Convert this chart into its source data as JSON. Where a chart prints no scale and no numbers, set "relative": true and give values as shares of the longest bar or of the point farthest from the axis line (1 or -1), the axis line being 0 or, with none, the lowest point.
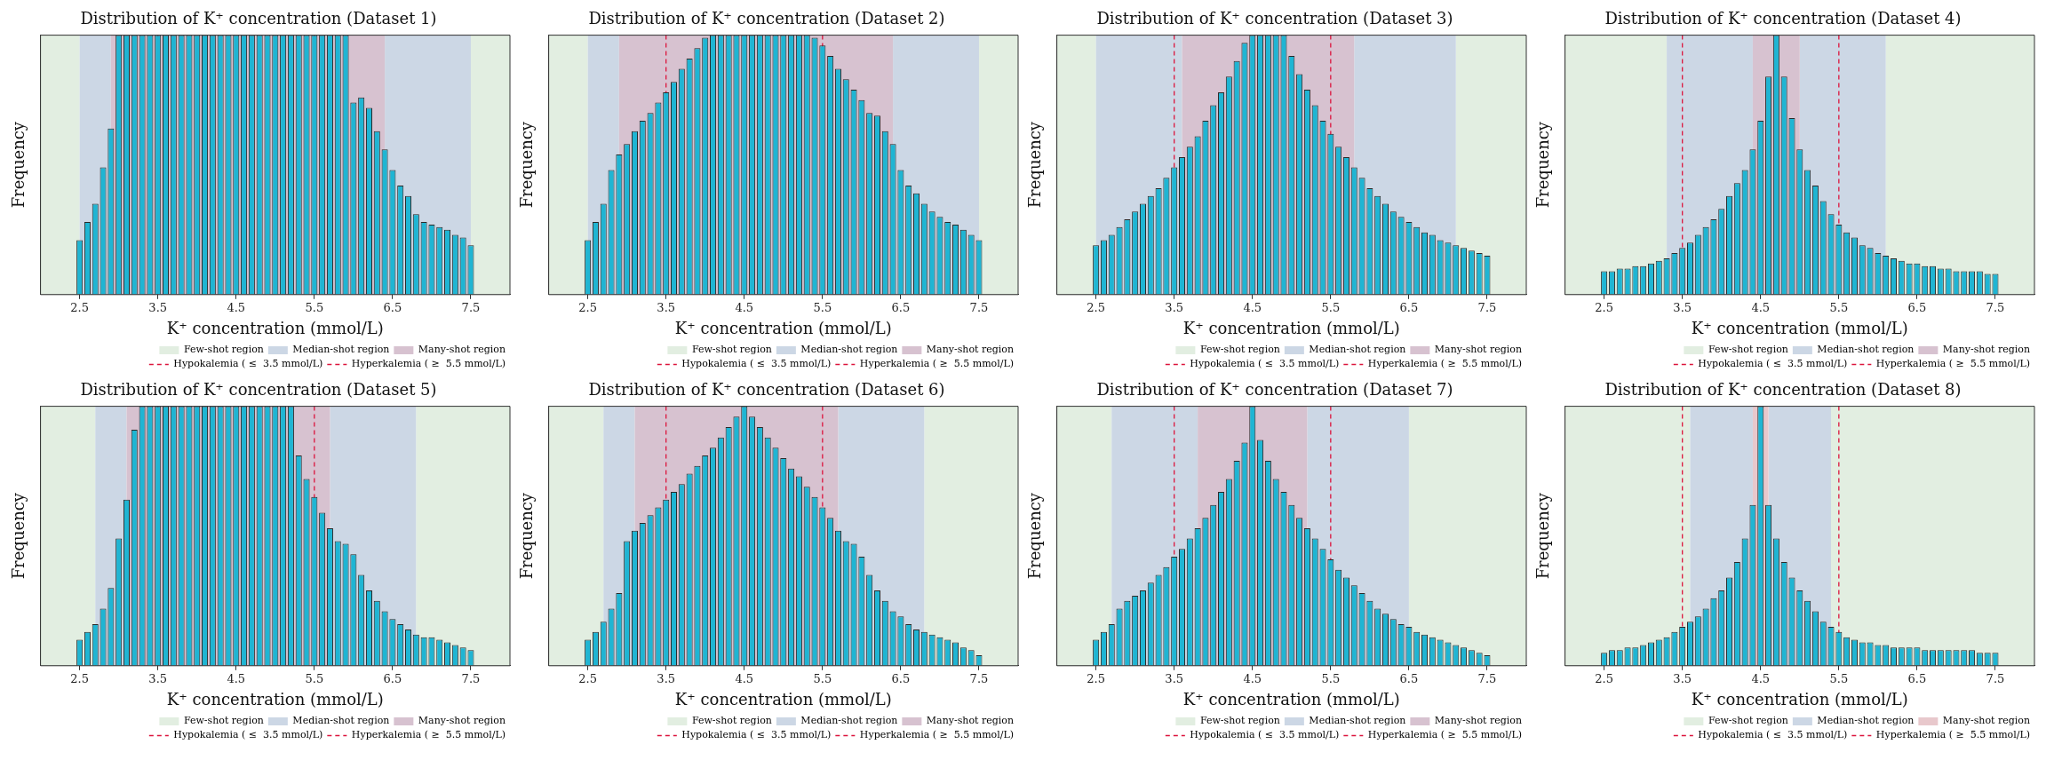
{
  "chart_data": [
    {
      "type": "bar",
      "title": "Distribution of K⁺ concentration (Dataset 1)",
      "xlabel": "K⁺ concentration (mmol/L)",
      "ylabel": "Frequency",
      "relative": true,
      "color": "#1fb5d3",
      "xlim": [
        2,
        8
      ],
      "xticks": [
        2.5,
        3.5,
        4.5,
        5.5,
        6.5,
        7.5
      ],
      "legend": "bottom right",
      "x": [
        2.5,
        2.6,
        2.7,
        2.8,
        2.9,
        3.0,
        3.1,
        3.2,
        3.3,
        3.4,
        3.5,
        3.6,
        3.7,
        3.8,
        3.9,
        4.0,
        4.1,
        4.2,
        4.3,
        4.4,
        4.5,
        4.6,
        4.7,
        4.8,
        4.9,
        5.0,
        5.1,
        5.2,
        5.3,
        5.4,
        5.5,
        5.6,
        5.7,
        5.8,
        5.9,
        6.0,
        6.1,
        6.2,
        6.3,
        6.4,
        6.5,
        6.6,
        6.7,
        6.8,
        6.9,
        7.0,
        7.1,
        7.2,
        7.3,
        7.4,
        7.5
      ],
      "values": [
        0.21,
        0.28,
        0.35,
        0.49,
        0.64,
        1,
        1,
        1,
        1,
        1,
        1,
        1,
        1,
        1,
        1,
        1,
        1,
        1,
        1,
        1,
        1,
        1,
        1,
        1,
        1,
        1,
        1,
        1,
        1,
        1,
        1,
        1,
        1,
        1,
        1,
        0.74,
        0.76,
        0.72,
        0.63,
        0.56,
        0.48,
        0.42,
        0.38,
        0.31,
        0.28,
        0.27,
        0.26,
        0.25,
        0.23,
        0.22,
        0.19
      ],
      "bands": [
        {
          "axis": "x",
          "from": 2,
          "to": 2.5,
          "label": "Few-shot region",
          "color": "#e2eee1"
        },
        {
          "axis": "x",
          "from": 7.5,
          "to": 8,
          "color": "#e2eee1"
        },
        {
          "axis": "x",
          "from": 2.5,
          "to": 2.9,
          "label": "Median-shot region",
          "color": "#ccd7e5"
        },
        {
          "axis": "x",
          "from": 6.4,
          "to": 7.5,
          "color": "#ccd7e5"
        },
        {
          "axis": "x",
          "from": 2.9,
          "to": 6.4,
          "label": "Many-shot region",
          "color": "#d7c2d0"
        }
      ],
      "ref_lines": [
        {
          "axis": "x",
          "value": 3.5,
          "label": "Hypokalemia ( ≤  3.5 mmol/L)",
          "color": "#dc143c",
          "line_style": "dashed"
        },
        {
          "axis": "x",
          "value": 5.5,
          "label": "Hyperkalemia ( ≥  5.5 mmol/L)",
          "color": "#dc143c",
          "line_style": "dashed"
        }
      ]
    },
    {
      "type": "bar",
      "title": "Distribution of K⁺ concentration (Dataset 2)",
      "xlabel": "K⁺ concentration (mmol/L)",
      "ylabel": "Frequency",
      "relative": true,
      "color": "#1fb5d3",
      "xlim": [
        2,
        8
      ],
      "xticks": [
        2.5,
        3.5,
        4.5,
        5.5,
        6.5,
        7.5
      ],
      "legend": "bottom right",
      "x": [
        2.5,
        2.6,
        2.7,
        2.8,
        2.9,
        3.0,
        3.1,
        3.2,
        3.3,
        3.4,
        3.5,
        3.6,
        3.7,
        3.8,
        3.9,
        4.0,
        4.1,
        4.2,
        4.3,
        4.4,
        4.5,
        4.6,
        4.7,
        4.8,
        4.9,
        5.0,
        5.1,
        5.2,
        5.3,
        5.4,
        5.5,
        5.6,
        5.7,
        5.8,
        5.9,
        6.0,
        6.1,
        6.2,
        6.3,
        6.4,
        6.5,
        6.6,
        6.7,
        6.8,
        6.9,
        7.0,
        7.1,
        7.2,
        7.3,
        7.4,
        7.5
      ],
      "values": [
        0.21,
        0.28,
        0.35,
        0.48,
        0.54,
        0.58,
        0.63,
        0.67,
        0.7,
        0.74,
        0.78,
        0.82,
        0.87,
        0.91,
        0.95,
        0.99,
        1,
        1,
        1,
        1,
        1,
        1,
        1,
        1,
        1,
        1,
        1,
        1,
        1,
        0.99,
        0.96,
        0.92,
        0.87,
        0.83,
        0.79,
        0.75,
        0.7,
        0.69,
        0.63,
        0.58,
        0.48,
        0.42,
        0.39,
        0.35,
        0.32,
        0.3,
        0.28,
        0.27,
        0.25,
        0.23,
        0.21
      ],
      "bands": [
        {
          "axis": "x",
          "from": 2,
          "to": 2.5,
          "label": "Few-shot region",
          "color": "#e2eee1"
        },
        {
          "axis": "x",
          "from": 7.5,
          "to": 8,
          "color": "#e2eee1"
        },
        {
          "axis": "x",
          "from": 2.5,
          "to": 2.9,
          "label": "Median-shot region",
          "color": "#ccd7e5"
        },
        {
          "axis": "x",
          "from": 6.4,
          "to": 7.5,
          "color": "#ccd7e5"
        },
        {
          "axis": "x",
          "from": 2.9,
          "to": 6.4,
          "label": "Many-shot region",
          "color": "#d7c2d0"
        }
      ],
      "ref_lines": [
        {
          "axis": "x",
          "value": 3.5,
          "label": "Hypokalemia ( ≤  3.5 mmol/L)",
          "color": "#dc143c",
          "line_style": "dashed"
        },
        {
          "axis": "x",
          "value": 5.5,
          "label": "Hyperkalemia ( ≥  5.5 mmol/L)",
          "color": "#dc143c",
          "line_style": "dashed"
        }
      ]
    },
    {
      "type": "bar",
      "title": "Distribution of K⁺ concentration (Dataset 3)",
      "xlabel": "K⁺ concentration (mmol/L)",
      "ylabel": "Frequency",
      "relative": true,
      "color": "#1fb5d3",
      "xlim": [
        2,
        8
      ],
      "xticks": [
        2.5,
        3.5,
        4.5,
        5.5,
        6.5,
        7.5
      ],
      "legend": "bottom right",
      "x": [
        2.5,
        2.6,
        2.7,
        2.8,
        2.9,
        3.0,
        3.1,
        3.2,
        3.3,
        3.4,
        3.5,
        3.6,
        3.7,
        3.8,
        3.9,
        4.0,
        4.1,
        4.2,
        4.3,
        4.4,
        4.5,
        4.6,
        4.7,
        4.8,
        4.9,
        5.0,
        5.1,
        5.2,
        5.3,
        5.4,
        5.5,
        5.6,
        5.7,
        5.8,
        5.9,
        6.0,
        6.1,
        6.2,
        6.3,
        6.4,
        6.5,
        6.6,
        6.7,
        6.8,
        6.9,
        7.0,
        7.1,
        7.2,
        7.3,
        7.4,
        7.5
      ],
      "values": [
        0.19,
        0.21,
        0.23,
        0.26,
        0.29,
        0.32,
        0.35,
        0.38,
        0.41,
        0.45,
        0.49,
        0.53,
        0.57,
        0.61,
        0.67,
        0.73,
        0.78,
        0.84,
        0.9,
        0.97,
        1,
        1,
        1,
        1,
        1,
        0.92,
        0.85,
        0.79,
        0.73,
        0.67,
        0.62,
        0.57,
        0.53,
        0.49,
        0.45,
        0.41,
        0.38,
        0.35,
        0.32,
        0.3,
        0.28,
        0.26,
        0.24,
        0.23,
        0.21,
        0.2,
        0.19,
        0.18,
        0.17,
        0.16,
        0.15
      ],
      "bands": [
        {
          "axis": "x",
          "from": 2,
          "to": 2.5,
          "label": "Few-shot region",
          "color": "#e2eee1"
        },
        {
          "axis": "x",
          "from": 7.1,
          "to": 8,
          "color": "#e2eee1"
        },
        {
          "axis": "x",
          "from": 2.5,
          "to": 3.6,
          "label": "Median-shot region",
          "color": "#ccd7e5"
        },
        {
          "axis": "x",
          "from": 5.8,
          "to": 7.1,
          "color": "#ccd7e5"
        },
        {
          "axis": "x",
          "from": 3.6,
          "to": 5.8,
          "label": "Many-shot region",
          "color": "#d7c2d0"
        }
      ],
      "ref_lines": [
        {
          "axis": "x",
          "value": 3.5,
          "label": "Hypokalemia ( ≤  3.5 mmol/L)",
          "color": "#dc143c",
          "line_style": "dashed"
        },
        {
          "axis": "x",
          "value": 5.5,
          "label": "Hyperkalemia ( ≥  5.5 mmol/L)",
          "color": "#dc143c",
          "line_style": "dashed"
        }
      ]
    },
    {
      "type": "bar",
      "title": "Distribution of K⁺ concentration (Dataset 4)",
      "xlabel": "K⁺ concentration (mmol/L)",
      "ylabel": "Frequency",
      "relative": true,
      "color": "#1fb5d3",
      "xlim": [
        2,
        8
      ],
      "xticks": [
        2.5,
        3.5,
        4.5,
        5.5,
        6.5,
        7.5
      ],
      "legend": "bottom right",
      "x": [
        2.5,
        2.6,
        2.7,
        2.8,
        2.9,
        3.0,
        3.1,
        3.2,
        3.3,
        3.4,
        3.5,
        3.6,
        3.7,
        3.8,
        3.9,
        4.0,
        4.1,
        4.2,
        4.3,
        4.4,
        4.5,
        4.6,
        4.7,
        4.8,
        4.9,
        5.0,
        5.1,
        5.2,
        5.3,
        5.4,
        5.5,
        5.6,
        5.7,
        5.8,
        5.9,
        6.0,
        6.1,
        6.2,
        6.3,
        6.4,
        6.5,
        6.6,
        6.7,
        6.8,
        6.9,
        7.0,
        7.1,
        7.2,
        7.3,
        7.4,
        7.5
      ],
      "values": [
        0.09,
        0.09,
        0.1,
        0.1,
        0.11,
        0.11,
        0.12,
        0.13,
        0.14,
        0.16,
        0.18,
        0.2,
        0.23,
        0.26,
        0.29,
        0.33,
        0.38,
        0.43,
        0.48,
        0.56,
        0.67,
        0.84,
        1,
        0.84,
        0.68,
        0.56,
        0.48,
        0.42,
        0.36,
        0.31,
        0.27,
        0.24,
        0.22,
        0.19,
        0.18,
        0.16,
        0.15,
        0.14,
        0.13,
        0.12,
        0.12,
        0.11,
        0.11,
        0.1,
        0.1,
        0.09,
        0.09,
        0.09,
        0.09,
        0.08,
        0.08
      ],
      "bands": [
        {
          "axis": "x",
          "from": 2,
          "to": 3.3,
          "label": "Few-shot region",
          "color": "#e2eee1"
        },
        {
          "axis": "x",
          "from": 6.1,
          "to": 8,
          "color": "#e2eee1"
        },
        {
          "axis": "x",
          "from": 3.3,
          "to": 4.4,
          "label": "Median-shot region",
          "color": "#ccd7e5"
        },
        {
          "axis": "x",
          "from": 5,
          "to": 6.1,
          "color": "#ccd7e5"
        },
        {
          "axis": "x",
          "from": 4.4,
          "to": 5,
          "label": "Many-shot region",
          "color": "#d7c2d0"
        }
      ],
      "ref_lines": [
        {
          "axis": "x",
          "value": 3.5,
          "label": "Hypokalemia ( ≤  3.5 mmol/L)",
          "color": "#dc143c",
          "line_style": "dashed"
        },
        {
          "axis": "x",
          "value": 5.5,
          "label": "Hyperkalemia ( ≥  5.5 mmol/L)",
          "color": "#dc143c",
          "line_style": "dashed"
        }
      ]
    },
    {
      "type": "bar",
      "title": "Distribution of K⁺ concentration (Dataset 5)",
      "xlabel": "K⁺ concentration (mmol/L)",
      "ylabel": "Frequency",
      "relative": true,
      "color": "#1fb5d3",
      "xlim": [
        2,
        8
      ],
      "xticks": [
        2.5,
        3.5,
        4.5,
        5.5,
        6.5,
        7.5
      ],
      "legend": "bottom right",
      "x": [
        2.5,
        2.6,
        2.7,
        2.8,
        2.9,
        3.0,
        3.1,
        3.2,
        3.3,
        3.4,
        3.5,
        3.6,
        3.7,
        3.8,
        3.9,
        4.0,
        4.1,
        4.2,
        4.3,
        4.4,
        4.5,
        4.6,
        4.7,
        4.8,
        4.9,
        5.0,
        5.1,
        5.2,
        5.3,
        5.4,
        5.5,
        5.6,
        5.7,
        5.8,
        5.9,
        6.0,
        6.1,
        6.2,
        6.3,
        6.4,
        6.5,
        6.6,
        6.7,
        6.8,
        6.9,
        7.0,
        7.1,
        7.2,
        7.3,
        7.4,
        7.5
      ],
      "values": [
        0.1,
        0.13,
        0.16,
        0.22,
        0.3,
        0.49,
        0.64,
        0.91,
        1,
        1,
        1,
        1,
        1,
        1,
        1,
        1,
        1,
        1,
        1,
        1,
        1,
        1,
        1,
        1,
        1,
        1,
        1,
        1,
        0.81,
        0.72,
        0.65,
        0.59,
        0.53,
        0.48,
        0.47,
        0.43,
        0.35,
        0.29,
        0.25,
        0.21,
        0.18,
        0.16,
        0.14,
        0.12,
        0.11,
        0.11,
        0.1,
        0.09,
        0.08,
        0.07,
        0.06
      ],
      "bands": [
        {
          "axis": "x",
          "from": 2,
          "to": 2.7,
          "label": "Few-shot region",
          "color": "#e2eee1"
        },
        {
          "axis": "x",
          "from": 6.8,
          "to": 8,
          "color": "#e2eee1"
        },
        {
          "axis": "x",
          "from": 2.7,
          "to": 3.1,
          "label": "Median-shot region",
          "color": "#ccd7e5"
        },
        {
          "axis": "x",
          "from": 5.7,
          "to": 6.8,
          "color": "#ccd7e5"
        },
        {
          "axis": "x",
          "from": 3.1,
          "to": 5.7,
          "label": "Many-shot region",
          "color": "#d7c2d0"
        }
      ],
      "ref_lines": [
        {
          "axis": "x",
          "value": 3.5,
          "label": "Hypokalemia ( ≤  3.5 mmol/L)",
          "color": "#dc143c",
          "line_style": "dashed"
        },
        {
          "axis": "x",
          "value": 5.5,
          "label": "Hyperkalemia ( ≥  5.5 mmol/L)",
          "color": "#dc143c",
          "line_style": "dashed"
        }
      ]
    },
    {
      "type": "bar",
      "title": "Distribution of K⁺ concentration (Dataset 6)",
      "xlabel": "K⁺ concentration (mmol/L)",
      "ylabel": "Frequency",
      "relative": true,
      "color": "#1fb5d3",
      "xlim": [
        2,
        8
      ],
      "xticks": [
        2.5,
        3.5,
        4.5,
        5.5,
        6.5,
        7.5
      ],
      "legend": "bottom right",
      "x": [
        2.5,
        2.6,
        2.7,
        2.8,
        2.9,
        3.0,
        3.1,
        3.2,
        3.3,
        3.4,
        3.5,
        3.6,
        3.7,
        3.8,
        3.9,
        4.0,
        4.1,
        4.2,
        4.3,
        4.4,
        4.5,
        4.6,
        4.7,
        4.8,
        4.9,
        5.0,
        5.1,
        5.2,
        5.3,
        5.4,
        5.5,
        5.6,
        5.7,
        5.8,
        5.9,
        6.0,
        6.1,
        6.2,
        6.3,
        6.4,
        6.5,
        6.6,
        6.7,
        6.8,
        6.9,
        7.0,
        7.1,
        7.2,
        7.3,
        7.4,
        7.5
      ],
      "values": [
        0.1,
        0.13,
        0.17,
        0.22,
        0.28,
        0.48,
        0.52,
        0.55,
        0.58,
        0.61,
        0.64,
        0.67,
        0.7,
        0.74,
        0.77,
        0.81,
        0.84,
        0.88,
        0.92,
        0.96,
        1,
        0.96,
        0.92,
        0.88,
        0.84,
        0.8,
        0.76,
        0.73,
        0.69,
        0.65,
        0.61,
        0.57,
        0.52,
        0.48,
        0.47,
        0.42,
        0.35,
        0.29,
        0.25,
        0.21,
        0.19,
        0.16,
        0.14,
        0.13,
        0.12,
        0.11,
        0.1,
        0.09,
        0.07,
        0.06,
        0.04
      ],
      "bands": [
        {
          "axis": "x",
          "from": 2,
          "to": 2.7,
          "label": "Few-shot region",
          "color": "#e2eee1"
        },
        {
          "axis": "x",
          "from": 6.8,
          "to": 8,
          "color": "#e2eee1"
        },
        {
          "axis": "x",
          "from": 2.7,
          "to": 3.1,
          "label": "Median-shot region",
          "color": "#ccd7e5"
        },
        {
          "axis": "x",
          "from": 5.7,
          "to": 6.8,
          "color": "#ccd7e5"
        },
        {
          "axis": "x",
          "from": 3.1,
          "to": 5.7,
          "label": "Many-shot region",
          "color": "#d7c2d0"
        }
      ],
      "ref_lines": [
        {
          "axis": "x",
          "value": 3.5,
          "label": "Hypokalemia ( ≤  3.5 mmol/L)",
          "color": "#dc143c",
          "line_style": "dashed"
        },
        {
          "axis": "x",
          "value": 5.5,
          "label": "Hyperkalemia ( ≥  5.5 mmol/L)",
          "color": "#dc143c",
          "line_style": "dashed"
        }
      ]
    },
    {
      "type": "bar",
      "title": "Distribution of K⁺ concentration (Dataset 7)",
      "xlabel": "K⁺ concentration (mmol/L)",
      "ylabel": "Frequency",
      "relative": true,
      "color": "#1fb5d3",
      "xlim": [
        2,
        8
      ],
      "xticks": [
        2.5,
        3.5,
        4.5,
        5.5,
        6.5,
        7.5
      ],
      "legend": "bottom right",
      "x": [
        2.5,
        2.6,
        2.7,
        2.8,
        2.9,
        3.0,
        3.1,
        3.2,
        3.3,
        3.4,
        3.5,
        3.6,
        3.7,
        3.8,
        3.9,
        4.0,
        4.1,
        4.2,
        4.3,
        4.4,
        4.5,
        4.6,
        4.7,
        4.8,
        4.9,
        5.0,
        5.1,
        5.2,
        5.3,
        5.4,
        5.5,
        5.6,
        5.7,
        5.8,
        5.9,
        6.0,
        6.1,
        6.2,
        6.3,
        6.4,
        6.5,
        6.6,
        6.7,
        6.8,
        6.9,
        7.0,
        7.1,
        7.2,
        7.3,
        7.4,
        7.5
      ],
      "values": [
        0.1,
        0.13,
        0.16,
        0.22,
        0.25,
        0.27,
        0.29,
        0.32,
        0.35,
        0.38,
        0.42,
        0.45,
        0.49,
        0.53,
        0.57,
        0.62,
        0.67,
        0.72,
        0.79,
        0.86,
        1,
        0.87,
        0.79,
        0.72,
        0.67,
        0.62,
        0.57,
        0.53,
        0.49,
        0.45,
        0.41,
        0.37,
        0.34,
        0.31,
        0.28,
        0.25,
        0.22,
        0.2,
        0.18,
        0.16,
        0.15,
        0.13,
        0.12,
        0.11,
        0.1,
        0.09,
        0.08,
        0.07,
        0.06,
        0.05,
        0.04
      ],
      "bands": [
        {
          "axis": "x",
          "from": 2,
          "to": 2.7,
          "label": "Few-shot region",
          "color": "#e2eee1"
        },
        {
          "axis": "x",
          "from": 6.5,
          "to": 8,
          "color": "#e2eee1"
        },
        {
          "axis": "x",
          "from": 2.7,
          "to": 3.8,
          "label": "Median-shot region",
          "color": "#ccd7e5"
        },
        {
          "axis": "x",
          "from": 5.2,
          "to": 6.5,
          "color": "#ccd7e5"
        },
        {
          "axis": "x",
          "from": 3.8,
          "to": 5.2,
          "label": "Many-shot region",
          "color": "#d7c2d0"
        }
      ],
      "ref_lines": [
        {
          "axis": "x",
          "value": 3.5,
          "label": "Hypokalemia ( ≤  3.5 mmol/L)",
          "color": "#dc143c",
          "line_style": "dashed"
        },
        {
          "axis": "x",
          "value": 5.5,
          "label": "Hyperkalemia ( ≥  5.5 mmol/L)",
          "color": "#dc143c",
          "line_style": "dashed"
        }
      ]
    },
    {
      "type": "bar",
      "title": "Distribution of K⁺ concentration (Dataset 8)",
      "xlabel": "K⁺ concentration (mmol/L)",
      "ylabel": "Frequency",
      "relative": true,
      "color": "#1fb5d3",
      "xlim": [
        2,
        8
      ],
      "xticks": [
        2.5,
        3.5,
        4.5,
        5.5,
        6.5,
        7.5
      ],
      "legend": "bottom right",
      "x": [
        2.5,
        2.6,
        2.7,
        2.8,
        2.9,
        3.0,
        3.1,
        3.2,
        3.3,
        3.4,
        3.5,
        3.6,
        3.7,
        3.8,
        3.9,
        4.0,
        4.1,
        4.2,
        4.3,
        4.4,
        4.5,
        4.6,
        4.7,
        4.8,
        4.9,
        5.0,
        5.1,
        5.2,
        5.3,
        5.4,
        5.5,
        5.6,
        5.7,
        5.8,
        5.9,
        6.0,
        6.1,
        6.2,
        6.3,
        6.4,
        6.5,
        6.6,
        6.7,
        6.8,
        6.9,
        7.0,
        7.1,
        7.2,
        7.3,
        7.4,
        7.5
      ],
      "values": [
        0.05,
        0.06,
        0.06,
        0.07,
        0.07,
        0.08,
        0.09,
        0.1,
        0.11,
        0.13,
        0.15,
        0.17,
        0.19,
        0.22,
        0.26,
        0.29,
        0.34,
        0.4,
        0.49,
        0.62,
        1,
        0.62,
        0.49,
        0.4,
        0.34,
        0.29,
        0.25,
        0.21,
        0.17,
        0.15,
        0.13,
        0.11,
        0.1,
        0.09,
        0.09,
        0.08,
        0.08,
        0.07,
        0.07,
        0.07,
        0.07,
        0.06,
        0.06,
        0.06,
        0.06,
        0.06,
        0.06,
        0.06,
        0.05,
        0.05,
        0.05
      ],
      "bands": [
        {
          "axis": "x",
          "from": 2,
          "to": 3.6,
          "label": "Few-shot region",
          "color": "#e2eee1"
        },
        {
          "axis": "x",
          "from": 5.4,
          "to": 8,
          "color": "#e2eee1"
        },
        {
          "axis": "x",
          "from": 3.6,
          "to": 4.4,
          "label": "Median-shot region",
          "color": "#ccd7e5"
        },
        {
          "axis": "x",
          "from": 4.6,
          "to": 5.4,
          "color": "#ccd7e5"
        },
        {
          "axis": "x",
          "from": 4.4,
          "to": 4.6,
          "label": "Many-shot region",
          "color": "#e8c8cc"
        }
      ],
      "ref_lines": [
        {
          "axis": "x",
          "value": 3.5,
          "label": "Hypokalemia ( ≤  3.5 mmol/L)",
          "color": "#dc143c",
          "line_style": "dashed"
        },
        {
          "axis": "x",
          "value": 5.5,
          "label": "Hyperkalemia ( ≥  5.5 mmol/L)",
          "color": "#dc143c",
          "line_style": "dashed"
        }
      ]
    }
  ]
}
